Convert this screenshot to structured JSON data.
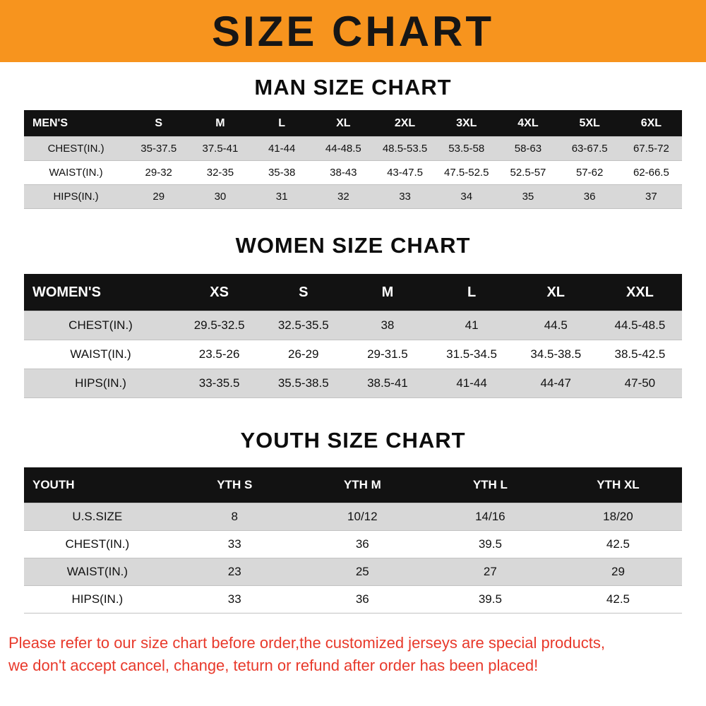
{
  "banner": {
    "title": "SIZE CHART",
    "bg_color": "#f7941e",
    "text_color": "#161616"
  },
  "sections": [
    {
      "id": "men",
      "title": "MAN SIZE CHART",
      "header_label": "MEN'S",
      "columns": [
        "S",
        "M",
        "L",
        "XL",
        "2XL",
        "3XL",
        "4XL",
        "5XL",
        "6XL"
      ],
      "rows": [
        {
          "label": "CHEST(IN.)",
          "values": [
            "35-37.5",
            "37.5-41",
            "41-44",
            "44-48.5",
            "48.5-53.5",
            "53.5-58",
            "58-63",
            "63-67.5",
            "67.5-72"
          ]
        },
        {
          "label": "WAIST(IN.)",
          "values": [
            "29-32",
            "32-35",
            "35-38",
            "38-43",
            "43-47.5",
            "47.5-52.5",
            "52.5-57",
            "57-62",
            "62-66.5"
          ]
        },
        {
          "label": "HIPS(IN.)",
          "values": [
            "29",
            "30",
            "31",
            "32",
            "33",
            "34",
            "35",
            "36",
            "37"
          ]
        }
      ]
    },
    {
      "id": "women",
      "title": "WOMEN SIZE CHART",
      "header_label": "WOMEN'S",
      "columns": [
        "XS",
        "S",
        "M",
        "L",
        "XL",
        "XXL"
      ],
      "rows": [
        {
          "label": "CHEST(IN.)",
          "values": [
            "29.5-32.5",
            "32.5-35.5",
            "38",
            "41",
            "44.5",
            "44.5-48.5"
          ]
        },
        {
          "label": "WAIST(IN.)",
          "values": [
            "23.5-26",
            "26-29",
            "29-31.5",
            "31.5-34.5",
            "34.5-38.5",
            "38.5-42.5"
          ]
        },
        {
          "label": "HIPS(IN.)",
          "values": [
            "33-35.5",
            "35.5-38.5",
            "38.5-41",
            "41-44",
            "44-47",
            "47-50"
          ]
        }
      ]
    },
    {
      "id": "youth",
      "title": "YOUTH SIZE CHART",
      "header_label": "YOUTH",
      "columns": [
        "YTH S",
        "YTH M",
        "YTH L",
        "YTH XL"
      ],
      "rows": [
        {
          "label": "U.S.SIZE",
          "values": [
            "8",
            "10/12",
            "14/16",
            "18/20"
          ]
        },
        {
          "label": "CHEST(IN.)",
          "values": [
            "33",
            "36",
            "39.5",
            "42.5"
          ]
        },
        {
          "label": "WAIST(IN.)",
          "values": [
            "23",
            "25",
            "27",
            "29"
          ]
        },
        {
          "label": "HIPS(IN.)",
          "values": [
            "33",
            "36",
            "39.5",
            "42.5"
          ]
        }
      ]
    }
  ],
  "footer": {
    "lines": [
      "Please refer to our size chart before order,the customized jerseys are special products,",
      "we don't accept cancel, change, teturn or refund after order has been placed!"
    ],
    "color": "#e8392b"
  }
}
